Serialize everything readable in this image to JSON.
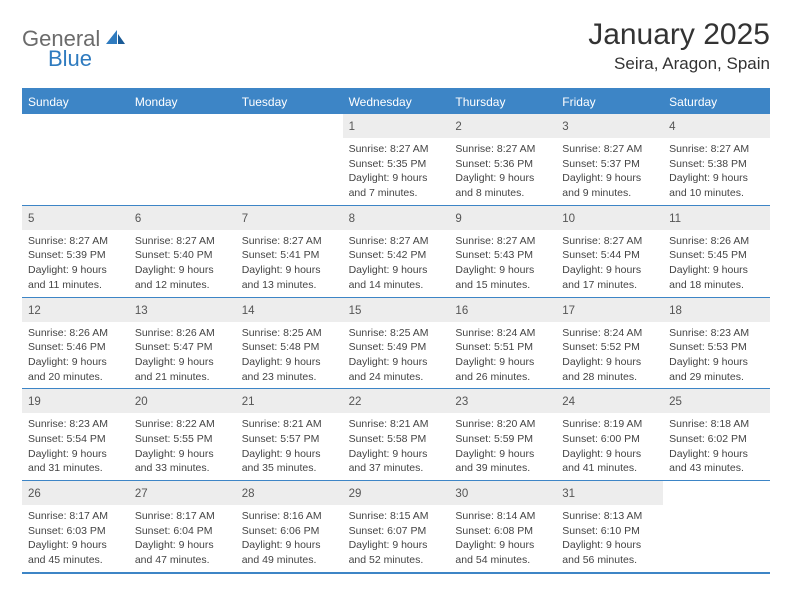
{
  "logo": {
    "text_gray": "General",
    "text_blue": "Blue"
  },
  "title": "January 2025",
  "location": "Seira, Aragon, Spain",
  "weekdays": [
    "Sunday",
    "Monday",
    "Tuesday",
    "Wednesday",
    "Thursday",
    "Friday",
    "Saturday"
  ],
  "colors": {
    "header_bg": "#3d85c6",
    "daynum_bg": "#ededed",
    "daynum_text": "#555",
    "body_text": "#444",
    "logo_gray": "#6b6b6b",
    "logo_blue": "#2f7bbf",
    "border": "#3d85c6"
  },
  "fonts": {
    "month_title_size": 30,
    "location_size": 17,
    "weekday_size": 12,
    "daynum_size": 11.5,
    "daydata_size": 10.5
  },
  "weeks": [
    [
      null,
      null,
      null,
      {
        "n": "1",
        "sunrise": "8:27 AM",
        "sunset": "5:35 PM",
        "daylight": "9 hours and 7 minutes."
      },
      {
        "n": "2",
        "sunrise": "8:27 AM",
        "sunset": "5:36 PM",
        "daylight": "9 hours and 8 minutes."
      },
      {
        "n": "3",
        "sunrise": "8:27 AM",
        "sunset": "5:37 PM",
        "daylight": "9 hours and 9 minutes."
      },
      {
        "n": "4",
        "sunrise": "8:27 AM",
        "sunset": "5:38 PM",
        "daylight": "9 hours and 10 minutes."
      }
    ],
    [
      {
        "n": "5",
        "sunrise": "8:27 AM",
        "sunset": "5:39 PM",
        "daylight": "9 hours and 11 minutes."
      },
      {
        "n": "6",
        "sunrise": "8:27 AM",
        "sunset": "5:40 PM",
        "daylight": "9 hours and 12 minutes."
      },
      {
        "n": "7",
        "sunrise": "8:27 AM",
        "sunset": "5:41 PM",
        "daylight": "9 hours and 13 minutes."
      },
      {
        "n": "8",
        "sunrise": "8:27 AM",
        "sunset": "5:42 PM",
        "daylight": "9 hours and 14 minutes."
      },
      {
        "n": "9",
        "sunrise": "8:27 AM",
        "sunset": "5:43 PM",
        "daylight": "9 hours and 15 minutes."
      },
      {
        "n": "10",
        "sunrise": "8:27 AM",
        "sunset": "5:44 PM",
        "daylight": "9 hours and 17 minutes."
      },
      {
        "n": "11",
        "sunrise": "8:26 AM",
        "sunset": "5:45 PM",
        "daylight": "9 hours and 18 minutes."
      }
    ],
    [
      {
        "n": "12",
        "sunrise": "8:26 AM",
        "sunset": "5:46 PM",
        "daylight": "9 hours and 20 minutes."
      },
      {
        "n": "13",
        "sunrise": "8:26 AM",
        "sunset": "5:47 PM",
        "daylight": "9 hours and 21 minutes."
      },
      {
        "n": "14",
        "sunrise": "8:25 AM",
        "sunset": "5:48 PM",
        "daylight": "9 hours and 23 minutes."
      },
      {
        "n": "15",
        "sunrise": "8:25 AM",
        "sunset": "5:49 PM",
        "daylight": "9 hours and 24 minutes."
      },
      {
        "n": "16",
        "sunrise": "8:24 AM",
        "sunset": "5:51 PM",
        "daylight": "9 hours and 26 minutes."
      },
      {
        "n": "17",
        "sunrise": "8:24 AM",
        "sunset": "5:52 PM",
        "daylight": "9 hours and 28 minutes."
      },
      {
        "n": "18",
        "sunrise": "8:23 AM",
        "sunset": "5:53 PM",
        "daylight": "9 hours and 29 minutes."
      }
    ],
    [
      {
        "n": "19",
        "sunrise": "8:23 AM",
        "sunset": "5:54 PM",
        "daylight": "9 hours and 31 minutes."
      },
      {
        "n": "20",
        "sunrise": "8:22 AM",
        "sunset": "5:55 PM",
        "daylight": "9 hours and 33 minutes."
      },
      {
        "n": "21",
        "sunrise": "8:21 AM",
        "sunset": "5:57 PM",
        "daylight": "9 hours and 35 minutes."
      },
      {
        "n": "22",
        "sunrise": "8:21 AM",
        "sunset": "5:58 PM",
        "daylight": "9 hours and 37 minutes."
      },
      {
        "n": "23",
        "sunrise": "8:20 AM",
        "sunset": "5:59 PM",
        "daylight": "9 hours and 39 minutes."
      },
      {
        "n": "24",
        "sunrise": "8:19 AM",
        "sunset": "6:00 PM",
        "daylight": "9 hours and 41 minutes."
      },
      {
        "n": "25",
        "sunrise": "8:18 AM",
        "sunset": "6:02 PM",
        "daylight": "9 hours and 43 minutes."
      }
    ],
    [
      {
        "n": "26",
        "sunrise": "8:17 AM",
        "sunset": "6:03 PM",
        "daylight": "9 hours and 45 minutes."
      },
      {
        "n": "27",
        "sunrise": "8:17 AM",
        "sunset": "6:04 PM",
        "daylight": "9 hours and 47 minutes."
      },
      {
        "n": "28",
        "sunrise": "8:16 AM",
        "sunset": "6:06 PM",
        "daylight": "9 hours and 49 minutes."
      },
      {
        "n": "29",
        "sunrise": "8:15 AM",
        "sunset": "6:07 PM",
        "daylight": "9 hours and 52 minutes."
      },
      {
        "n": "30",
        "sunrise": "8:14 AM",
        "sunset": "6:08 PM",
        "daylight": "9 hours and 54 minutes."
      },
      {
        "n": "31",
        "sunrise": "8:13 AM",
        "sunset": "6:10 PM",
        "daylight": "9 hours and 56 minutes."
      },
      null
    ]
  ],
  "labels": {
    "sunrise": "Sunrise:",
    "sunset": "Sunset:",
    "daylight": "Daylight:"
  }
}
